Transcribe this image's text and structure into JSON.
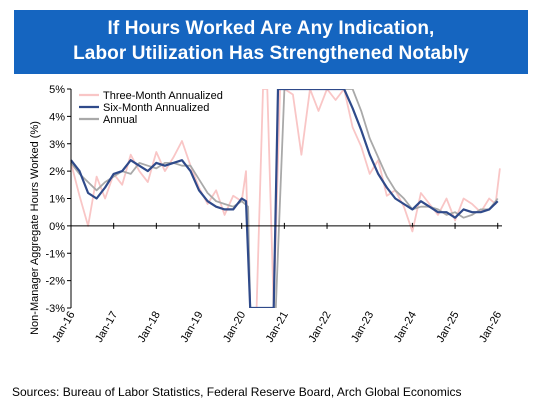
{
  "title": {
    "line1": "If Hours Worked Are Any Indication,",
    "line2": "Labor Utilization Has Strengthened Notably"
  },
  "source": "Sources: Bureau of Labor Statistics, Federal Reserve Board, Arch Global Economics",
  "colors": {
    "three_month": "#f9c6c6",
    "six_month": "#2f4a8a",
    "annual": "#a9a9a9",
    "title_bg": "#1565c0"
  },
  "chart_data": {
    "type": "line",
    "ylabel": "Non-Manager Aggregate Hours Worked (%)",
    "xlabel": "",
    "ylim": [
      -3,
      5
    ],
    "yticks": [
      "5%",
      "4%",
      "3%",
      "2%",
      "1%",
      "0%",
      "-1%",
      "-2%",
      "-3%"
    ],
    "ytick_values": [
      5,
      4,
      3,
      2,
      1,
      0,
      -1,
      -2,
      -3
    ],
    "xlim": [
      2016.0,
      2026.1
    ],
    "xticks": [
      "Jan-16",
      "Jan-17",
      "Jan-18",
      "Jan-19",
      "Jan-20",
      "Jan-21",
      "Jan-22",
      "Jan-23",
      "Jan-24",
      "Jan-25",
      "Jan-26"
    ],
    "xtick_values": [
      2016,
      2017,
      2018,
      2019,
      2020,
      2021,
      2022,
      2023,
      2024,
      2025,
      2026
    ],
    "legend": {
      "placement": "top-left",
      "entries": [
        "Three-Month Annualized",
        "Six-Month Annualized",
        "Annual"
      ]
    },
    "grid": false,
    "series": [
      {
        "name": "Three-Month Annualized",
        "x": [
          2016.0,
          2016.2,
          2016.4,
          2016.6,
          2016.8,
          2017.0,
          2017.2,
          2017.4,
          2017.6,
          2017.8,
          2018.0,
          2018.2,
          2018.4,
          2018.6,
          2018.8,
          2019.0,
          2019.2,
          2019.4,
          2019.6,
          2019.8,
          2020.0,
          2020.1,
          2020.2,
          2020.35,
          2020.5,
          2020.6,
          2020.75,
          2020.9,
          2021.0,
          2021.2,
          2021.4,
          2021.6,
          2021.8,
          2022.0,
          2022.2,
          2022.4,
          2022.6,
          2022.8,
          2023.0,
          2023.2,
          2023.4,
          2023.6,
          2023.8,
          2024.0,
          2024.2,
          2024.4,
          2024.6,
          2024.8,
          2025.0,
          2025.2,
          2025.4,
          2025.6,
          2025.8,
          2025.95,
          2026.05
        ],
        "values": [
          2.3,
          1.1,
          0.0,
          1.8,
          1.0,
          1.9,
          1.5,
          2.6,
          2.0,
          1.6,
          2.7,
          2.0,
          2.5,
          3.1,
          2.2,
          1.4,
          0.8,
          1.3,
          0.4,
          1.1,
          0.9,
          2.0,
          -3.0,
          -3.0,
          5.0,
          5.0,
          -3.0,
          5.0,
          5.0,
          4.8,
          2.6,
          5.0,
          4.2,
          5.0,
          4.6,
          5.0,
          3.6,
          2.9,
          1.9,
          2.4,
          1.1,
          1.3,
          0.7,
          -0.2,
          1.2,
          0.8,
          0.4,
          1.0,
          0.2,
          1.0,
          0.8,
          0.5,
          1.0,
          0.8,
          2.1
        ]
      },
      {
        "name": "Six-Month Annualized",
        "x": [
          2016.0,
          2016.2,
          2016.4,
          2016.6,
          2016.8,
          2017.0,
          2017.2,
          2017.4,
          2017.6,
          2017.8,
          2018.0,
          2018.2,
          2018.4,
          2018.6,
          2018.8,
          2019.0,
          2019.2,
          2019.4,
          2019.6,
          2019.8,
          2020.0,
          2020.1,
          2020.2,
          2020.3,
          2020.5,
          2020.75,
          2020.85,
          2021.0,
          2021.2,
          2021.4,
          2021.6,
          2021.8,
          2022.0,
          2022.2,
          2022.4,
          2022.6,
          2022.8,
          2023.0,
          2023.2,
          2023.4,
          2023.6,
          2023.8,
          2024.0,
          2024.2,
          2024.4,
          2024.6,
          2024.8,
          2025.0,
          2025.2,
          2025.4,
          2025.6,
          2025.8,
          2026.0
        ],
        "values": [
          2.4,
          2.0,
          1.2,
          1.0,
          1.4,
          1.9,
          2.0,
          2.4,
          2.2,
          2.0,
          2.3,
          2.2,
          2.3,
          2.4,
          2.0,
          1.3,
          0.9,
          0.7,
          0.6,
          0.6,
          1.0,
          0.9,
          -3.0,
          -3.0,
          -3.0,
          -3.0,
          5.0,
          5.0,
          5.0,
          5.0,
          5.0,
          5.0,
          5.0,
          5.0,
          5.0,
          4.3,
          3.5,
          2.6,
          1.9,
          1.4,
          1.0,
          0.8,
          0.6,
          0.9,
          0.7,
          0.5,
          0.5,
          0.3,
          0.6,
          0.5,
          0.5,
          0.6,
          0.9
        ]
      },
      {
        "name": "Annual",
        "x": [
          2016.0,
          2016.2,
          2016.4,
          2016.6,
          2016.8,
          2017.0,
          2017.2,
          2017.4,
          2017.6,
          2017.8,
          2018.0,
          2018.2,
          2018.4,
          2018.6,
          2018.8,
          2019.0,
          2019.2,
          2019.4,
          2019.6,
          2019.8,
          2020.0,
          2020.15,
          2020.2,
          2020.8,
          2021.0,
          2021.2,
          2021.4,
          2021.6,
          2021.8,
          2022.0,
          2022.2,
          2022.4,
          2022.6,
          2022.8,
          2023.0,
          2023.2,
          2023.4,
          2023.6,
          2023.8,
          2024.0,
          2024.2,
          2024.4,
          2024.6,
          2024.8,
          2025.0,
          2025.2,
          2025.4,
          2025.6,
          2025.8,
          2026.0
        ],
        "values": [
          2.3,
          1.9,
          1.6,
          1.3,
          1.6,
          1.8,
          2.0,
          1.9,
          2.3,
          2.2,
          2.1,
          2.3,
          2.3,
          2.2,
          2.2,
          1.7,
          1.2,
          0.9,
          0.8,
          0.7,
          0.9,
          0.7,
          -3.0,
          -3.0,
          5.0,
          5.0,
          5.0,
          5.0,
          5.0,
          5.0,
          5.0,
          5.0,
          5.0,
          4.2,
          3.2,
          2.5,
          1.8,
          1.3,
          1.0,
          0.6,
          0.7,
          0.7,
          0.6,
          0.4,
          0.5,
          0.3,
          0.4,
          0.6,
          0.6,
          1.0
        ]
      }
    ]
  }
}
